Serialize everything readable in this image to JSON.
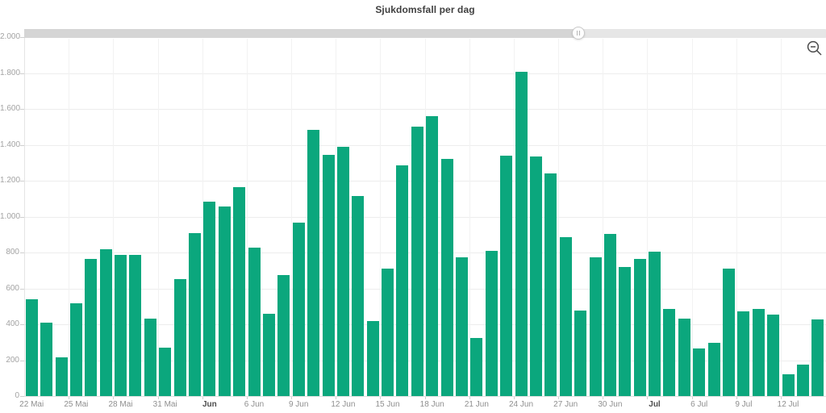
{
  "title": "Sjukdomsfall per dag",
  "colors": {
    "bar": "#0ba77d",
    "gridline_horizontal": "#ededed",
    "gridline_vertical": "#f2f2f2",
    "axis_label": "#8f8f8f",
    "axis_label_bold": "#4d4d4d",
    "scrollbar_track": "#e6e6e6",
    "scrollbar_selected": "#d5d5d5",
    "icon_stroke": "#4a4a4a"
  },
  "scrollbar": {
    "grabber_position_pct": 69.1
  },
  "toolbar": {
    "zoom_out_icon": "magnifier-minus-icon"
  },
  "chart_data": {
    "type": "bar",
    "title": "Sjukdomsfall per dag",
    "xlabel": "",
    "ylabel": "",
    "ylim": [
      0,
      2000
    ],
    "y_tick_step": 200,
    "grid": true,
    "legend": "none",
    "categories": [
      "22 Mai",
      "23 Mai",
      "24 Mai",
      "25 Mai",
      "26 Mai",
      "27 Mai",
      "28 Mai",
      "29 Mai",
      "30 Mai",
      "31 Mai",
      "1 Jun",
      "2 Jun",
      "3 Jun",
      "4 Jun",
      "5 Jun",
      "6 Jun",
      "7 Jun",
      "8 Jun",
      "9 Jun",
      "10 Jun",
      "11 Jun",
      "12 Jun",
      "13 Jun",
      "14 Jun",
      "15 Jun",
      "16 Jun",
      "17 Jun",
      "18 Jun",
      "19 Jun",
      "20 Jun",
      "21 Jun",
      "22 Jun",
      "23 Jun",
      "24 Jun",
      "25 Jun",
      "26 Jun",
      "27 Jun",
      "28 Jun",
      "29 Jun",
      "30 Jun",
      "1 Jul",
      "2 Jul",
      "3 Jul",
      "4 Jul",
      "5 Jul",
      "6 Jul",
      "7 Jul",
      "8 Jul",
      "9 Jul",
      "10 Jul",
      "11 Jul",
      "12 Jul",
      "13 Jul",
      "14 Jul"
    ],
    "values": [
      540,
      410,
      215,
      515,
      765,
      820,
      785,
      785,
      430,
      270,
      650,
      910,
      1085,
      1055,
      1165,
      825,
      460,
      675,
      965,
      1485,
      1345,
      1390,
      1115,
      420,
      710,
      1285,
      1500,
      1560,
      1320,
      775,
      325,
      810,
      1340,
      1805,
      1335,
      1240,
      885,
      475,
      775,
      905,
      720,
      765,
      805,
      485,
      430,
      265,
      295,
      710,
      470,
      485,
      455,
      120,
      175,
      425
    ],
    "y_tick_labels": [
      "0",
      "200",
      "400",
      "600",
      "800",
      "1.000",
      "1.200",
      "1.400",
      "1.600",
      "1.800",
      "2.000"
    ],
    "x_tick_labels": [
      {
        "index": 0,
        "label": "22 Mai",
        "bold": false
      },
      {
        "index": 3,
        "label": "25 Mai",
        "bold": false
      },
      {
        "index": 6,
        "label": "28 Mai",
        "bold": false
      },
      {
        "index": 9,
        "label": "31 Mai",
        "bold": false
      },
      {
        "index": 12,
        "label": "Jun",
        "bold": true
      },
      {
        "index": 15,
        "label": "6 Jun",
        "bold": false
      },
      {
        "index": 18,
        "label": "9 Jun",
        "bold": false
      },
      {
        "index": 21,
        "label": "12 Jun",
        "bold": false
      },
      {
        "index": 24,
        "label": "15 Jun",
        "bold": false
      },
      {
        "index": 27,
        "label": "18 Jun",
        "bold": false
      },
      {
        "index": 30,
        "label": "21 Jun",
        "bold": false
      },
      {
        "index": 33,
        "label": "24 Jun",
        "bold": false
      },
      {
        "index": 36,
        "label": "27 Jun",
        "bold": false
      },
      {
        "index": 39,
        "label": "30 Jun",
        "bold": false
      },
      {
        "index": 42,
        "label": "Jul",
        "bold": true
      },
      {
        "index": 45,
        "label": "6 Jul",
        "bold": false
      },
      {
        "index": 48,
        "label": "9 Jul",
        "bold": false
      },
      {
        "index": 51,
        "label": "12 Jul",
        "bold": false
      }
    ]
  }
}
